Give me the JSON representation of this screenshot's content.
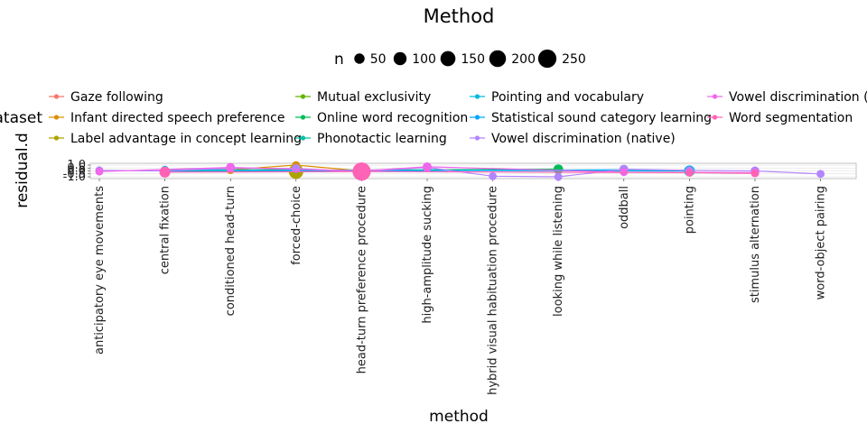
{
  "chart_data": {
    "type": "line",
    "title": "Method",
    "xlabel": "method",
    "ylabel": "residual.d",
    "size_legend": {
      "title": "n",
      "values": [
        "50",
        "100",
        "150",
        "200",
        "250"
      ]
    },
    "color_legend_title": "dataset",
    "ylim": [
      -1.0,
      1.0
    ],
    "y_ticks": [
      "-1.0",
      "-0.5",
      "0.0",
      "0.5",
      "1.0"
    ],
    "categories": [
      "anticipatory eye movements",
      "central fixation",
      "conditioned head-turn",
      "forced-choice",
      "head-turn preference procedure",
      "high-amplitude sucking",
      "hybrid visual habituation procedure",
      "looking while listening",
      "oddball",
      "pointing",
      "stimulus alternation",
      "word-object pairing"
    ],
    "series": [
      {
        "name": "Gaze following",
        "color": "#F8766D",
        "points": [
          {
            "x": "central fixation",
            "y": -0.1,
            "n": 20
          },
          {
            "x": "conditioned head-turn",
            "y": 0.3,
            "n": 15
          }
        ]
      },
      {
        "name": "Infant directed speech preference",
        "color": "#DB8E00",
        "points": [
          {
            "x": "central fixation",
            "y": -0.1,
            "n": 30
          },
          {
            "x": "conditioned head-turn",
            "y": 0.2,
            "n": 25
          },
          {
            "x": "forced-choice",
            "y": 1.0,
            "n": 20
          },
          {
            "x": "head-turn preference procedure",
            "y": 0.0,
            "n": 60
          }
        ]
      },
      {
        "name": "Label advantage in concept learning",
        "color": "#AEA200",
        "points": [
          {
            "x": "central fixation",
            "y": 0.1,
            "n": 20
          },
          {
            "x": "forced-choice",
            "y": -0.1,
            "n": 140
          }
        ]
      },
      {
        "name": "Mutual exclusivity",
        "color": "#64B200",
        "points": [
          {
            "x": "central fixation",
            "y": 0.0,
            "n": 20
          },
          {
            "x": "forced-choice",
            "y": 0.3,
            "n": 30
          }
        ]
      },
      {
        "name": "Online word recognition",
        "color": "#00BD5C",
        "points": [
          {
            "x": "central fixation",
            "y": 0.0,
            "n": 20
          },
          {
            "x": "looking while listening",
            "y": 0.3,
            "n": 40
          }
        ]
      },
      {
        "name": "Phonotactic learning",
        "color": "#00C1A7",
        "points": [
          {
            "x": "central fixation",
            "y": 0.1,
            "n": 25
          },
          {
            "x": "head-turn preference procedure",
            "y": 0.1,
            "n": 50
          }
        ]
      },
      {
        "name": "Pointing and vocabulary",
        "color": "#00BADE",
        "points": [
          {
            "x": "central fixation",
            "y": 0.2,
            "n": 20
          },
          {
            "x": "pointing",
            "y": 0.0,
            "n": 60
          }
        ]
      },
      {
        "name": "Statistical sound category learning",
        "color": "#00A6FF",
        "points": [
          {
            "x": "central fixation",
            "y": -0.1,
            "n": 20
          },
          {
            "x": "head-turn preference procedure",
            "y": 0.0,
            "n": 30
          },
          {
            "x": "oddball",
            "y": 0.2,
            "n": 30
          },
          {
            "x": "pointing",
            "y": 0.1,
            "n": 30
          }
        ]
      },
      {
        "name": "Vowel discrimination (native)",
        "color": "#B385FF",
        "points": [
          {
            "x": "anticipatory eye movements",
            "y": 0.1,
            "n": 20
          },
          {
            "x": "central fixation",
            "y": 0.0,
            "n": 30
          },
          {
            "x": "conditioned head-turn",
            "y": 0.5,
            "n": 30
          },
          {
            "x": "forced-choice",
            "y": 0.4,
            "n": 30
          },
          {
            "x": "head-turn preference procedure",
            "y": -0.1,
            "n": 40
          },
          {
            "x": "high-amplitude sucking",
            "y": 0.6,
            "n": 30
          },
          {
            "x": "hybrid visual habituation procedure",
            "y": -0.9,
            "n": 20
          },
          {
            "x": "looking while listening",
            "y": -1.0,
            "n": 20
          },
          {
            "x": "oddball",
            "y": 0.3,
            "n": 30
          },
          {
            "x": "pointing",
            "y": 0.1,
            "n": 20
          },
          {
            "x": "stimulus alternation",
            "y": 0.0,
            "n": 30
          },
          {
            "x": "word-object pairing",
            "y": -0.5,
            "n": 20
          }
        ]
      },
      {
        "name": "Vowel discrimination (non-native)",
        "color": "#EF67EB",
        "points": [
          {
            "x": "anticipatory eye movements",
            "y": -0.1,
            "n": 20
          },
          {
            "x": "conditioned head-turn",
            "y": 0.6,
            "n": 30
          },
          {
            "x": "head-turn preference procedure",
            "y": 0.0,
            "n": 60
          },
          {
            "x": "high-amplitude sucking",
            "y": 0.7,
            "n": 30
          },
          {
            "x": "oddball",
            "y": -0.2,
            "n": 20
          },
          {
            "x": "stimulus alternation",
            "y": -0.3,
            "n": 20
          }
        ]
      },
      {
        "name": "Word segmentation",
        "color": "#FF63B6",
        "points": [
          {
            "x": "central fixation",
            "y": -0.2,
            "n": 60
          },
          {
            "x": "head-turn preference procedure",
            "y": -0.1,
            "n": 250
          },
          {
            "x": "pointing",
            "y": -0.3,
            "n": 20
          },
          {
            "x": "stimulus alternation",
            "y": -0.4,
            "n": 20
          }
        ]
      }
    ]
  }
}
